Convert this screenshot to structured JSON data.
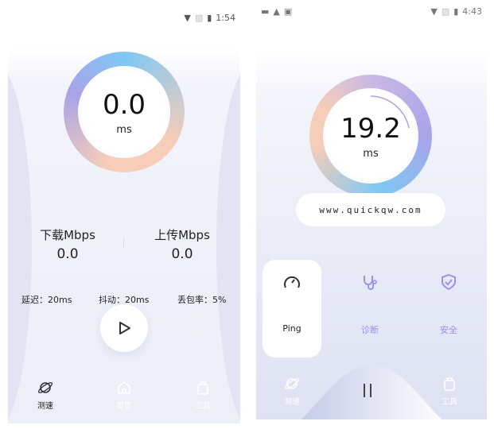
{
  "left": {
    "status": {
      "time": "1:54"
    },
    "gauge": {
      "value": "0.0",
      "unit": "ms"
    },
    "download": {
      "label": "下载Mbps",
      "value": "0.0"
    },
    "upload": {
      "label": "上传Mbps",
      "value": "0.0"
    },
    "latency": "延迟：20ms",
    "jitter": "抖动：20ms",
    "loss": "丢包率：5%",
    "nav": [
      {
        "label": "测速",
        "active": true
      },
      {
        "label": "首页"
      },
      {
        "label": "工具"
      }
    ]
  },
  "right": {
    "status": {
      "time": "4:43"
    },
    "gauge": {
      "value": "19.2",
      "unit": "ms"
    },
    "url": "www.quickqw.com",
    "cards": [
      {
        "label": "Ping",
        "active": true
      },
      {
        "label": "诊断"
      },
      {
        "label": "安全"
      }
    ],
    "nav": [
      {
        "label": "测速"
      },
      {
        "label": "工具"
      }
    ]
  },
  "colors": {
    "accent": "#9b8ff0",
    "ring_blue": "#7ec8f5",
    "ring_peach": "#f5cdb8",
    "ring_purple": "#a9a3e8"
  }
}
